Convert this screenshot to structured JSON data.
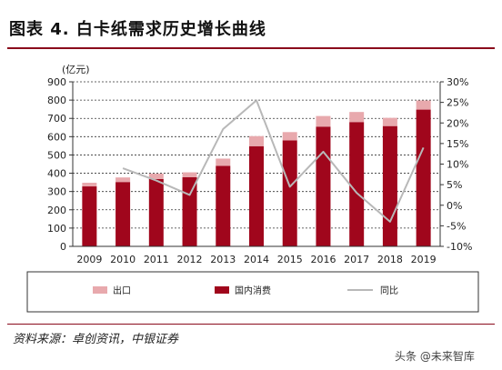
{
  "figure": {
    "title": "图表 4. 白卡纸需求历史增长曲线",
    "source": "资料来源：卓创资讯，中银证券",
    "watermark": "头条 @未来智库"
  },
  "chart_data": {
    "type": "bar",
    "categories": [
      "2009",
      "2010",
      "2011",
      "2012",
      "2013",
      "2014",
      "2015",
      "2016",
      "2017",
      "2018",
      "2019"
    ],
    "left_axis": {
      "unit_label": "(亿元)",
      "ylim": [
        0,
        900
      ],
      "ticks": [
        0,
        100,
        200,
        300,
        400,
        500,
        600,
        700,
        800,
        900
      ],
      "tick_labels": [
        "0",
        "100",
        "200",
        "300",
        "400",
        "500",
        "600",
        "700",
        "800",
        "900"
      ]
    },
    "right_axis": {
      "ylim": [
        -10,
        30
      ],
      "ticks": [
        -10,
        -5,
        0,
        5,
        10,
        15,
        20,
        25,
        30
      ],
      "tick_labels": [
        "-10%",
        "-5%",
        "0%",
        "5%",
        "10%",
        "15%",
        "20%",
        "25%",
        "30%"
      ]
    },
    "grid": true,
    "legend_position": "bottom",
    "series": [
      {
        "name": "国内消费",
        "kind": "bar",
        "axis": "left",
        "color": "#a0061c",
        "values": [
          328,
          352,
          368,
          378,
          440,
          548,
          580,
          655,
          680,
          658,
          748
        ]
      },
      {
        "name": "出口",
        "kind": "bar-stacked",
        "axis": "left",
        "color": "#e8a9ad",
        "values": [
          20,
          25,
          30,
          27,
          40,
          55,
          45,
          58,
          55,
          45,
          50
        ]
      },
      {
        "name": "同比",
        "kind": "line",
        "axis": "right",
        "color": "#b8b8b8",
        "values": [
          null,
          9,
          6,
          2.5,
          18.5,
          25.5,
          4.5,
          13,
          3,
          -4,
          14
        ]
      }
    ]
  },
  "legend": [
    {
      "label": "出口",
      "color": "#e8a9ad",
      "kind": "rect"
    },
    {
      "label": "国内消费",
      "color": "#a0061c",
      "kind": "rect"
    },
    {
      "label": "同比",
      "color": "#b8b8b8",
      "kind": "line"
    }
  ]
}
